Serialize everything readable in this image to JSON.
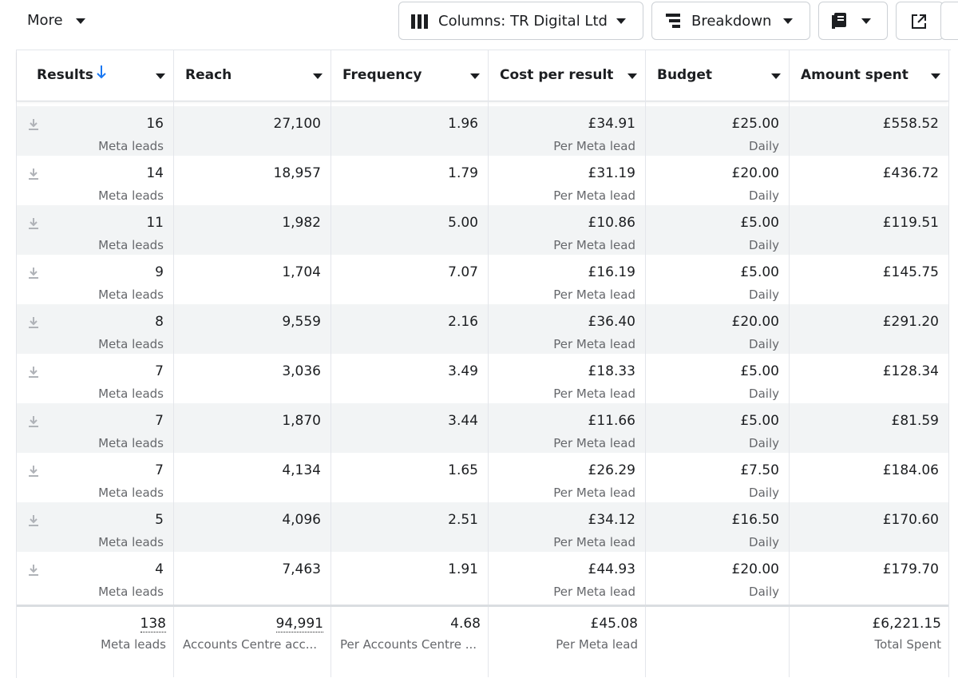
{
  "toolbar": {
    "more": "More",
    "columns": "Columns: TR Digital Ltd",
    "breakdown": "Breakdown"
  },
  "table": {
    "headers": [
      "Results",
      "Reach",
      "Frequency",
      "Cost per result",
      "Budget",
      "Amount spent"
    ],
    "rows": [
      [
        "16",
        "Meta leads",
        "27,100",
        "1.96",
        "£34.91",
        "Per Meta lead",
        "£25.00",
        "Daily",
        "£558.52"
      ],
      [
        "14",
        "Meta leads",
        "18,957",
        "1.79",
        "£31.19",
        "Per Meta lead",
        "£20.00",
        "Daily",
        "£436.72"
      ],
      [
        "11",
        "Meta leads",
        "1,982",
        "5.00",
        "£10.86",
        "Per Meta lead",
        "£5.00",
        "Daily",
        "£119.51"
      ],
      [
        "9",
        "Meta leads",
        "1,704",
        "7.07",
        "£16.19",
        "Per Meta lead",
        "£5.00",
        "Daily",
        "£145.75"
      ],
      [
        "8",
        "Meta leads",
        "9,559",
        "2.16",
        "£36.40",
        "Per Meta lead",
        "£20.00",
        "Daily",
        "£291.20"
      ],
      [
        "7",
        "Meta leads",
        "3,036",
        "3.49",
        "£18.33",
        "Per Meta lead",
        "£5.00",
        "Daily",
        "£128.34"
      ],
      [
        "7",
        "Meta leads",
        "1,870",
        "3.44",
        "£11.66",
        "Per Meta lead",
        "£5.00",
        "Daily",
        "£81.59"
      ],
      [
        "7",
        "Meta leads",
        "4,134",
        "1.65",
        "£26.29",
        "Per Meta lead",
        "£7.50",
        "Daily",
        "£184.06"
      ],
      [
        "5",
        "Meta leads",
        "4,096",
        "2.51",
        "£34.12",
        "Per Meta lead",
        "£16.50",
        "Daily",
        "£170.60"
      ],
      [
        "4",
        "Meta leads",
        "7,463",
        "1.91",
        "£44.93",
        "Per Meta lead",
        "£20.00",
        "Daily",
        "£179.70"
      ]
    ],
    "totals": {
      "results": "138",
      "results_sub": "Meta leads",
      "reach": "94,991",
      "reach_sub": "Accounts Centre acc...",
      "frequency": "4.68",
      "frequency_sub": "Per Accounts Centre ...",
      "cost": "£45.08",
      "cost_sub": "Per Meta lead",
      "amount": "£6,221.15",
      "amount_sub": "Total Spent"
    }
  }
}
